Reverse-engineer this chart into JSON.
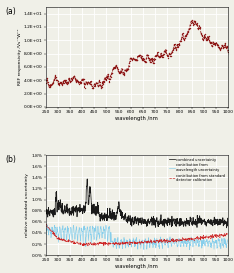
{
  "title_a": "(a)",
  "title_b": "(b)",
  "ylabel_a": "REF responsivity /Vs⁻¹W⁻¹",
  "ylabel_b": "relative standard uncertainty",
  "xlabel": "wavelength /nm",
  "xlim": [
    250,
    1000
  ],
  "ylim_a": [
    0,
    14.0
  ],
  "ylim_b": [
    0.0,
    1.8
  ],
  "yticks_a": [
    0.0,
    2.0,
    4.0,
    6.0,
    8.0,
    10.0,
    12.0,
    14.0
  ],
  "ytick_labels_a": [
    "0.0E+00",
    "2.0E+00",
    "4.0E+00",
    "6.0E+00",
    "8.0E+00",
    "1.0E+01",
    "1.2E+01",
    "1.4E+01"
  ],
  "yticks_b": [
    0.0,
    0.2,
    0.4,
    0.6,
    0.8,
    1.0,
    1.2,
    1.4,
    1.6,
    1.8
  ],
  "ytick_labels_b": [
    "0.0%",
    "0.2%",
    "0.4%",
    "0.6%",
    "0.8%",
    "1.0%",
    "1.2%",
    "1.4%",
    "1.6%",
    "1.8%"
  ],
  "xticks": [
    250,
    300,
    350,
    400,
    450,
    500,
    550,
    600,
    650,
    700,
    750,
    800,
    850,
    900,
    950,
    1000
  ],
  "line_color_a": "#8B1010",
  "line_color_combined": "#1a1a1a",
  "line_color_wavelength": "#87CEEB",
  "line_color_standard": "#CC2222",
  "legend_entries": [
    "combined uncertainty",
    "contribution from\nwavelength uncertainty",
    "contribution from standard\ndetector calibration"
  ],
  "background_color": "#f0f0e8",
  "grid_color": "#ffffff",
  "scale_factor": 10
}
